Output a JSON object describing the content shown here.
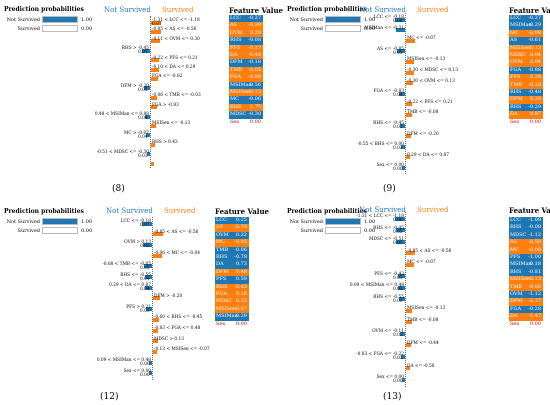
{
  "colors": {
    "not_survived": "#1f77b4",
    "survived": "#ff7f0e"
  },
  "panels": [
    {
      "caption": "(8)",
      "probs": {
        "title": "Prediction probabilities",
        "rows": [
          {
            "label": "Not Survived",
            "value": 1.0,
            "text": "1.00"
          },
          {
            "label": "Survived",
            "value": 0.0,
            "text": "0.00"
          }
        ]
      },
      "hdr": {
        "ns": "Not Survived",
        "s": "Survived",
        "fv": "Feature Value"
      },
      "conditions": [
        {
          "side": "s",
          "label": "-1.31 < LCC <= -1.18",
          "value": "0.07"
        },
        {
          "side": "s",
          "label": "-0.85 < AS <= -0.56",
          "value": ""
        },
        {
          "side": "s",
          "label": "-0.11 < OVM <= 0.30",
          "value": ""
        },
        {
          "side": "n",
          "label": "RHS > -0.45",
          "value": "0.07"
        },
        {
          "side": "s",
          "label": "-0.22 < PFS <= 0.21",
          "value": ""
        },
        {
          "side": "s",
          "label": "-0.10 < DA <= 0.29",
          "value": ""
        },
        {
          "side": "s",
          "label": "FGA <= -0.82",
          "value": ""
        },
        {
          "side": "n",
          "label": "DFM > -0.20",
          "value": "0.05"
        },
        {
          "side": "s",
          "label": "-0.06 < TMB <= -0.03",
          "value": ""
        },
        {
          "side": "s",
          "label": "FGA > -0.83",
          "value": ""
        },
        {
          "side": "n",
          "label": "0.48 < MSIMan <= 0.88",
          "value": "0.04"
        },
        {
          "side": "s",
          "label": "MSISen <= -0.13",
          "value": ""
        },
        {
          "side": "n",
          "label": "MC > -0.07",
          "value": "0.04"
        },
        {
          "side": "s",
          "label": "BHS > 0.43",
          "value": ""
        },
        {
          "side": "n",
          "label": "-0.51 < MDSC <= -0.30",
          "value": "0.03"
        },
        {
          "side": "s",
          "label": "",
          "value": ""
        }
      ],
      "table": [
        {
          "f": "LCC",
          "v": "-0.27",
          "c": "#1f77b4"
        },
        {
          "f": "AS",
          "v": "-0.39",
          "c": "#ff7f0e"
        },
        {
          "f": "OVM",
          "v": "0.29",
          "c": "#ff7f0e"
        },
        {
          "f": "RHS",
          "v": "-0.08",
          "c": "#1f77b4"
        },
        {
          "f": "PFS",
          "v": "-0.17",
          "c": "#ff7f0e"
        },
        {
          "f": "DA",
          "v": "-0.44",
          "c": "#ff7f0e"
        },
        {
          "f": "DFM",
          "v": "-0.18",
          "c": "#1f77b4"
        },
        {
          "f": "TMB",
          "v": "-0.05",
          "c": "#ff7f0e"
        },
        {
          "f": "FGA",
          "v": "-0.88",
          "c": "#ff7f0e"
        },
        {
          "f": "MSIMan",
          "v": "0.56",
          "c": "#1f77b4"
        },
        {
          "f": "MSISen",
          "v": "-0.13",
          "c": "#ff7f0e"
        },
        {
          "f": "MC",
          "v": "-0.06",
          "c": "#1f77b4"
        },
        {
          "f": "BHS",
          "v": "1.75",
          "c": "#ff7f0e"
        },
        {
          "f": "MDSC",
          "v": "-0.30",
          "c": "#1f77b4"
        },
        {
          "f": "Sex",
          "v": "0.00",
          "c": ""
        }
      ]
    },
    {
      "caption": "(9)",
      "probs": {
        "title": "Prediction probabilities",
        "rows": [
          {
            "label": "Not Survived",
            "value": 1.0,
            "text": "1.00"
          },
          {
            "label": "Survived",
            "value": 0.0,
            "text": "0.00"
          }
        ]
      },
      "hdr": {
        "ns": "Not Survived",
        "s": "Survived",
        "fv": "Feature Value"
      },
      "conditions": [
        {
          "side": "n",
          "label": "LCC <= -0.18",
          "value": "0.06"
        },
        {
          "side": "n",
          "label": "MSIMan <= -0.31",
          "value": ""
        },
        {
          "side": "s",
          "label": "MC <= -0.07",
          "value": ""
        },
        {
          "side": "n",
          "label": "AS <= -0.85",
          "value": "0.05"
        },
        {
          "side": "s",
          "label": "MSISen <= -0.13",
          "value": ""
        },
        {
          "side": "s",
          "label": "-0.30 < MDSC <= 0.13",
          "value": ""
        },
        {
          "side": "s",
          "label": "-0.30 < OVM <= 0.13",
          "value": ""
        },
        {
          "side": "n",
          "label": "FGA <= -0.83",
          "value": "0.04"
        },
        {
          "side": "s",
          "label": "-0.22 < PFS <= 0.21",
          "value": ""
        },
        {
          "side": "s",
          "label": "TMB <= -0.08",
          "value": ""
        },
        {
          "side": "n",
          "label": "RHS <= -0.45",
          "value": "0.03"
        },
        {
          "side": "s",
          "label": "DFM <= -0.20",
          "value": ""
        },
        {
          "side": "n",
          "label": "-0.55 < BHS <= 0.00",
          "value": "0.02"
        },
        {
          "side": "s",
          "label": "0.29 < DA <= 0.87",
          "value": ""
        },
        {
          "side": "n",
          "label": "Sex <= 0.00",
          "value": "0.00"
        }
      ],
      "table": [
        {
          "f": "LCC",
          "v": "-0.27",
          "c": "#1f77b4"
        },
        {
          "f": "MSIMan",
          "v": "-0.29",
          "c": "#1f77b4"
        },
        {
          "f": "MC",
          "v": "-0.09",
          "c": "#ff7f0e"
        },
        {
          "f": "AS",
          "v": "-0.61",
          "c": "#1f77b4"
        },
        {
          "f": "MSISen",
          "v": "-0.13",
          "c": "#ff7f0e"
        },
        {
          "f": "MDSC",
          "v": "0.04",
          "c": "#ff7f0e"
        },
        {
          "f": "OVM",
          "v": "0.04",
          "c": "#ff7f0e"
        },
        {
          "f": "FGA",
          "v": "-0.88",
          "c": "#1f77b4"
        },
        {
          "f": "PFS",
          "v": "0.29",
          "c": "#ff7f0e"
        },
        {
          "f": "TMB",
          "v": "-0.10",
          "c": "#ff7f0e"
        },
        {
          "f": "RHS",
          "v": "-0.48",
          "c": "#1f77b4"
        },
        {
          "f": "DFM",
          "v": "0.28",
          "c": "#ff7f0e"
        },
        {
          "f": "BHS",
          "v": "-0.29",
          "c": "#1f77b4"
        },
        {
          "f": "DA",
          "v": "0.87",
          "c": "#ff7f0e"
        },
        {
          "f": "Sex",
          "v": "0.00",
          "c": ""
        }
      ]
    },
    {
      "caption": "(12)",
      "probs": {
        "title": "Prediction probabilities",
        "rows": [
          {
            "label": "Not Survived",
            "value": 1.0,
            "text": "1.00"
          },
          {
            "label": "Survived",
            "value": 0.0,
            "text": "0.00"
          }
        ]
      },
      "hdr": {
        "ns": "Not Survived",
        "s": "Survived",
        "fv": "Feature Value"
      },
      "conditions": [
        {
          "side": "n",
          "label": "LCC <= -0.18",
          "value": "0.07"
        },
        {
          "side": "s",
          "label": "-0.85 < AS <= -0.56",
          "value": ""
        },
        {
          "side": "n",
          "label": "OVM > 0.13",
          "value": "0.05"
        },
        {
          "side": "s",
          "label": "-0.06 < MC <= -0.04",
          "value": ""
        },
        {
          "side": "n",
          "label": "-0.08 < TMB <= -0.05",
          "value": "0.05"
        },
        {
          "side": "n",
          "label": "BHS <= -0.55",
          "value": "0.04"
        },
        {
          "side": "n",
          "label": "0.29 < DA <= 0.87",
          "value": "0.04"
        },
        {
          "side": "s",
          "label": "DFM > -0.20",
          "value": ""
        },
        {
          "side": "n",
          "label": "PFS > 0.21",
          "value": "0.03"
        },
        {
          "side": "s",
          "label": "-0.60 < RHS <= -0.45",
          "value": ""
        },
        {
          "side": "s",
          "label": "-0.83 < FGA <= 0.48",
          "value": ""
        },
        {
          "side": "s",
          "label": "MDSC > 0.13",
          "value": ""
        },
        {
          "side": "s",
          "label": "-0.13 < MSISen <= -0.07",
          "value": ""
        },
        {
          "side": "n",
          "label": "0.09 < MSIMan <= 0.48",
          "value": "0.00"
        },
        {
          "side": "n",
          "label": "Sex <= 0.00",
          "value": "0.00"
        }
      ],
      "table": [
        {
          "f": "LCC",
          "v": "0.25",
          "c": "#1f77b4"
        },
        {
          "f": "AS",
          "v": "-0.58",
          "c": "#ff7f0e"
        },
        {
          "f": "OVM",
          "v": "0.22",
          "c": "#1f77b4"
        },
        {
          "f": "MC",
          "v": "-0.05",
          "c": "#ff7f0e"
        },
        {
          "f": "TMB",
          "v": "-0.06",
          "c": "#1f77b4"
        },
        {
          "f": "BHS",
          "v": "-0.78",
          "c": "#1f77b4"
        },
        {
          "f": "DA",
          "v": "0.73",
          "c": "#1f77b4"
        },
        {
          "f": "DFM",
          "v": "0.48",
          "c": "#ff7f0e"
        },
        {
          "f": "PFS",
          "v": "0.59",
          "c": "#1f77b4"
        },
        {
          "f": "RHS",
          "v": "-0.45",
          "c": "#ff7f0e"
        },
        {
          "f": "FGA",
          "v": "0.16",
          "c": "#ff7f0e"
        },
        {
          "f": "MDSC",
          "v": "0.22",
          "c": "#ff7f0e"
        },
        {
          "f": "MSISen",
          "v": "-0.07",
          "c": "#ff7f0e"
        },
        {
          "f": "MSIMan",
          "v": "0.29",
          "c": "#1f77b4"
        },
        {
          "f": "Sex",
          "v": "0.00",
          "c": ""
        }
      ]
    },
    {
      "caption": "(13)",
      "probs": {
        "title": "Prediction probabilities",
        "rows": [
          {
            "label": "Not Survived",
            "value": 1.0,
            "text": "1.00"
          },
          {
            "label": "Survived",
            "value": 0.0,
            "text": "0.00"
          }
        ]
      },
      "hdr": {
        "ns": "Not Survived",
        "s": "Survived",
        "fv": "Feature Value"
      },
      "conditions": [
        {
          "side": "n",
          "label": "-1.31 < LCC <= -1.18",
          "value": "0.06"
        },
        {
          "side": "n",
          "label": "RHS <= -0.45",
          "value": "0.05"
        },
        {
          "side": "n",
          "label": "MDSC <= -0.51",
          "value": "0.05"
        },
        {
          "side": "s",
          "label": "-0.85 < AS <= -0.56",
          "value": ""
        },
        {
          "side": "s",
          "label": "MC <= -0.07",
          "value": ""
        },
        {
          "side": "n",
          "label": "PFS <= -0.43",
          "value": "0.03"
        },
        {
          "side": "n",
          "label": "0.09 < MSIMan <= 0.48",
          "value": "0.03"
        },
        {
          "side": "n",
          "label": "BHS <= -0.55",
          "value": "0.03"
        },
        {
          "side": "s",
          "label": "MSISen <= -0.13",
          "value": ""
        },
        {
          "side": "s",
          "label": "TMB <= -0.08",
          "value": ""
        },
        {
          "side": "n",
          "label": "OVM <= -0.11",
          "value": "0.02"
        },
        {
          "side": "s",
          "label": "DFM <= -0.44",
          "value": ""
        },
        {
          "side": "n",
          "label": "-0.83 < FGA <= -0.22",
          "value": "0.02"
        },
        {
          "side": "s",
          "label": "DA <= -0.58",
          "value": ""
        },
        {
          "side": "n",
          "label": "Sex <= 0.00",
          "value": "0.00"
        }
      ],
      "table": [
        {
          "f": "LCC",
          "v": "-1.09",
          "c": "#1f77b4"
        },
        {
          "f": "RHS",
          "v": "-0.08",
          "c": "#1f77b4"
        },
        {
          "f": "MDSC",
          "v": "-1.12",
          "c": "#1f77b4"
        },
        {
          "f": "AS",
          "v": "-0.58",
          "c": "#ff7f0e"
        },
        {
          "f": "MC",
          "v": "-0.08",
          "c": "#ff7f0e"
        },
        {
          "f": "PFS",
          "v": "-1.00",
          "c": "#1f77b4"
        },
        {
          "f": "MSIMan",
          "v": "0.18",
          "c": "#1f77b4"
        },
        {
          "f": "BHS",
          "v": "-0.81",
          "c": "#1f77b4"
        },
        {
          "f": "MSISen",
          "v": "-0.13",
          "c": "#ff7f0e"
        },
        {
          "f": "TMB",
          "v": "-0.09",
          "c": "#ff7f0e"
        },
        {
          "f": "OVM",
          "v": "-1.12",
          "c": "#1f77b4"
        },
        {
          "f": "DFM",
          "v": "-1.17",
          "c": "#ff7f0e"
        },
        {
          "f": "FGA",
          "v": "-0.28",
          "c": "#1f77b4"
        },
        {
          "f": "DA",
          "v": "-1.47",
          "c": "#ff7f0e"
        },
        {
          "f": "Sex",
          "v": "0.00",
          "c": ""
        }
      ]
    }
  ]
}
